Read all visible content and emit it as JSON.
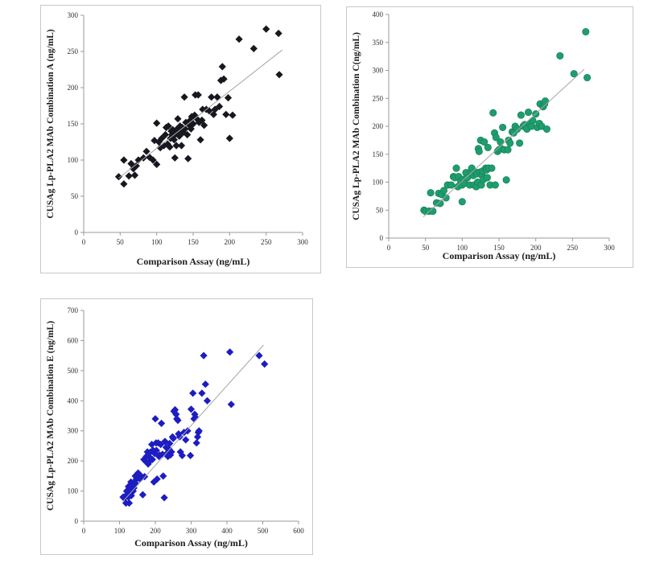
{
  "page": {
    "background": "#ffffff",
    "panel_border_color": "#c7c7cd"
  },
  "chart_data": [
    {
      "id": "combination-a",
      "type": "scatter",
      "marker": "diamond",
      "marker_color": "#17171f",
      "marker_edge_color": "#0c0c14",
      "trendline_color": "#a6a6a6",
      "title": "",
      "xlabel": "Comparison Assay (ng/mL)",
      "ylabel": "CUSAg Lp-PLA2 MAb Combination A (ng/mL)",
      "xlim": [
        0,
        300
      ],
      "ylim": [
        0,
        300
      ],
      "xticks": [
        0,
        50,
        100,
        150,
        200,
        250,
        300
      ],
      "yticks": [
        0,
        50,
        100,
        150,
        200,
        250,
        300
      ],
      "grid": false,
      "legend": null,
      "trendline": {
        "x1": 48,
        "y1": 75,
        "x2": 272,
        "y2": 252
      },
      "points": [
        [
          48,
          77
        ],
        [
          55,
          67
        ],
        [
          55,
          100
        ],
        [
          62,
          78
        ],
        [
          65,
          95
        ],
        [
          68,
          88
        ],
        [
          70,
          79
        ],
        [
          72,
          92
        ],
        [
          75,
          100
        ],
        [
          82,
          103
        ],
        [
          86,
          112
        ],
        [
          90,
          104
        ],
        [
          95,
          100
        ],
        [
          97,
          127
        ],
        [
          100,
          94
        ],
        [
          100,
          151
        ],
        [
          103,
          125
        ],
        [
          105,
          117
        ],
        [
          107,
          130
        ],
        [
          110,
          120
        ],
        [
          112,
          135
        ],
        [
          113,
          145
        ],
        [
          115,
          122
        ],
        [
          116,
          147
        ],
        [
          118,
          118
        ],
        [
          119,
          130
        ],
        [
          120,
          140
        ],
        [
          121,
          135
        ],
        [
          122,
          142
        ],
        [
          124,
          128
        ],
        [
          125,
          103
        ],
        [
          126,
          136
        ],
        [
          127,
          120
        ],
        [
          128,
          143
        ],
        [
          129,
          157
        ],
        [
          130,
          140
        ],
        [
          131,
          133
        ],
        [
          132,
          147
        ],
        [
          134,
          120
        ],
        [
          135,
          145
        ],
        [
          136,
          138
        ],
        [
          138,
          187
        ],
        [
          139,
          143
        ],
        [
          140,
          152
        ],
        [
          142,
          135
        ],
        [
          143,
          102
        ],
        [
          145,
          148
        ],
        [
          146,
          155
        ],
        [
          147,
          143
        ],
        [
          148,
          160
        ],
        [
          150,
          150
        ],
        [
          152,
          162
        ],
        [
          153,
          190
        ],
        [
          155,
          157
        ],
        [
          157,
          190
        ],
        [
          158,
          152
        ],
        [
          160,
          128
        ],
        [
          162,
          155
        ],
        [
          163,
          170
        ],
        [
          165,
          148
        ],
        [
          168,
          170
        ],
        [
          172,
          168
        ],
        [
          175,
          187
        ],
        [
          178,
          163
        ],
        [
          180,
          170
        ],
        [
          183,
          187
        ],
        [
          186,
          174
        ],
        [
          188,
          210
        ],
        [
          190,
          229
        ],
        [
          192,
          212
        ],
        [
          195,
          163
        ],
        [
          198,
          186
        ],
        [
          200,
          130
        ],
        [
          204,
          162
        ],
        [
          213,
          267
        ],
        [
          233,
          254
        ],
        [
          250,
          281
        ],
        [
          267,
          275
        ],
        [
          268,
          218
        ]
      ]
    },
    {
      "id": "combination-c",
      "type": "scatter",
      "marker": "circle",
      "marker_color": "#1f9d6d",
      "marker_edge_color": "#12815a",
      "trendline_color": "#a6a6a6",
      "title": "",
      "xlabel": "Comparison Assay (ng/mL)",
      "ylabel": "CUSAg Lp-PLA2 MAb Combination C(ng/mL)",
      "xlim": [
        0,
        300
      ],
      "ylim": [
        0,
        400
      ],
      "xticks": [
        0,
        50,
        100,
        150,
        200,
        250,
        300
      ],
      "yticks": [
        0,
        50,
        100,
        150,
        200,
        250,
        300,
        350,
        400
      ],
      "grid": false,
      "legend": null,
      "trendline": {
        "x1": 47,
        "y1": 38,
        "x2": 266,
        "y2": 302
      },
      "points": [
        [
          48,
          50
        ],
        [
          50,
          48
        ],
        [
          55,
          48
        ],
        [
          57,
          81
        ],
        [
          60,
          48
        ],
        [
          65,
          63
        ],
        [
          68,
          80
        ],
        [
          70,
          62
        ],
        [
          72,
          78
        ],
        [
          75,
          85
        ],
        [
          78,
          72
        ],
        [
          80,
          95
        ],
        [
          85,
          95
        ],
        [
          88,
          110
        ],
        [
          90,
          108
        ],
        [
          92,
          125
        ],
        [
          94,
          92
        ],
        [
          95,
          110
        ],
        [
          98,
          102
        ],
        [
          100,
          65
        ],
        [
          100,
          95
        ],
        [
          102,
          105
        ],
        [
          103,
          98
        ],
        [
          105,
          117
        ],
        [
          107,
          108
        ],
        [
          110,
          95
        ],
        [
          112,
          120
        ],
        [
          113,
          125
        ],
        [
          115,
          112
        ],
        [
          116,
          95
        ],
        [
          118,
          118
        ],
        [
          119,
          92
        ],
        [
          120,
          115
        ],
        [
          121,
          100
        ],
        [
          122,
          160
        ],
        [
          123,
          155
        ],
        [
          124,
          118
        ],
        [
          125,
          175
        ],
        [
          126,
          95
        ],
        [
          127,
          112
        ],
        [
          128,
          120
        ],
        [
          129,
          105
        ],
        [
          130,
          172
        ],
        [
          132,
          125
        ],
        [
          133,
          122
        ],
        [
          134,
          108
        ],
        [
          135,
          162
        ],
        [
          136,
          125
        ],
        [
          138,
          95
        ],
        [
          140,
          125
        ],
        [
          142,
          224
        ],
        [
          144,
          188
        ],
        [
          145,
          95
        ],
        [
          146,
          180
        ],
        [
          148,
          155
        ],
        [
          150,
          158
        ],
        [
          152,
          172
        ],
        [
          153,
          160
        ],
        [
          155,
          198
        ],
        [
          157,
          158
        ],
        [
          160,
          104
        ],
        [
          162,
          158
        ],
        [
          163,
          175
        ],
        [
          165,
          170
        ],
        [
          168,
          190
        ],
        [
          170,
          188
        ],
        [
          172,
          200
        ],
        [
          175,
          195
        ],
        [
          178,
          170
        ],
        [
          180,
          220
        ],
        [
          183,
          200
        ],
        [
          185,
          203
        ],
        [
          188,
          195
        ],
        [
          190,
          225
        ],
        [
          192,
          205
        ],
        [
          194,
          200
        ],
        [
          196,
          210
        ],
        [
          200,
          222
        ],
        [
          202,
          198
        ],
        [
          205,
          205
        ],
        [
          206,
          240
        ],
        [
          208,
          200
        ],
        [
          210,
          235
        ],
        [
          212,
          240
        ],
        [
          213,
          245
        ],
        [
          215,
          195
        ],
        [
          233,
          326
        ],
        [
          252,
          294
        ],
        [
          268,
          369
        ],
        [
          270,
          287
        ]
      ]
    },
    {
      "id": "combination-e",
      "type": "scatter",
      "marker": "diamond",
      "marker_color": "#1d1dc2",
      "marker_edge_color": "#12129a",
      "trendline_color": "#a6a6a6",
      "title": "",
      "xlabel": "Comparison Assay (ng/mL)",
      "ylabel": "CUSAg Lp-PLA2 MAb Combination E (ng/mL)",
      "xlim": [
        0,
        600
      ],
      "ylim": [
        0,
        700
      ],
      "xticks": [
        0,
        100,
        200,
        300,
        400,
        500,
        600
      ],
      "yticks": [
        0,
        100,
        200,
        300,
        400,
        500,
        600,
        700
      ],
      "grid": false,
      "legend": null,
      "trendline": {
        "x1": 109,
        "y1": 65,
        "x2": 502,
        "y2": 585
      },
      "points": [
        [
          110,
          80
        ],
        [
          115,
          78
        ],
        [
          118,
          60
        ],
        [
          120,
          85
        ],
        [
          120,
          100
        ],
        [
          122,
          90
        ],
        [
          125,
          80
        ],
        [
          125,
          115
        ],
        [
          127,
          60
        ],
        [
          128,
          95
        ],
        [
          130,
          112
        ],
        [
          132,
          130
        ],
        [
          133,
          85
        ],
        [
          135,
          105
        ],
        [
          136,
          125
        ],
        [
          138,
          100
        ],
        [
          140,
          110
        ],
        [
          142,
          130
        ],
        [
          144,
          150
        ],
        [
          145,
          125
        ],
        [
          147,
          140
        ],
        [
          150,
          145
        ],
        [
          152,
          160
        ],
        [
          155,
          155
        ],
        [
          157,
          140
        ],
        [
          160,
          150
        ],
        [
          162,
          145
        ],
        [
          165,
          88
        ],
        [
          168,
          205
        ],
        [
          170,
          148
        ],
        [
          172,
          200
        ],
        [
          175,
          215
        ],
        [
          178,
          230
        ],
        [
          180,
          190
        ],
        [
          182,
          215
        ],
        [
          185,
          200
        ],
        [
          187,
          230
        ],
        [
          190,
          255
        ],
        [
          192,
          205
        ],
        [
          194,
          235
        ],
        [
          196,
          130
        ],
        [
          198,
          225
        ],
        [
          200,
          340
        ],
        [
          202,
          260
        ],
        [
          203,
          235
        ],
        [
          205,
          140
        ],
        [
          208,
          260
        ],
        [
          210,
          215
        ],
        [
          212,
          220
        ],
        [
          215,
          255
        ],
        [
          217,
          325
        ],
        [
          220,
          222
        ],
        [
          222,
          150
        ],
        [
          225,
          78
        ],
        [
          227,
          265
        ],
        [
          230,
          245
        ],
        [
          232,
          225
        ],
        [
          235,
          215
        ],
        [
          238,
          240
        ],
        [
          240,
          258
        ],
        [
          242,
          220
        ],
        [
          245,
          230
        ],
        [
          248,
          280
        ],
        [
          250,
          275
        ],
        [
          252,
          365
        ],
        [
          255,
          370
        ],
        [
          258,
          355
        ],
        [
          260,
          340
        ],
        [
          263,
          335
        ],
        [
          265,
          290
        ],
        [
          268,
          280
        ],
        [
          270,
          230
        ],
        [
          275,
          218
        ],
        [
          280,
          295
        ],
        [
          285,
          270
        ],
        [
          290,
          300
        ],
        [
          298,
          218
        ],
        [
          300,
          372
        ],
        [
          305,
          425
        ],
        [
          308,
          340
        ],
        [
          310,
          355
        ],
        [
          312,
          345
        ],
        [
          315,
          260
        ],
        [
          318,
          280
        ],
        [
          320,
          295
        ],
        [
          322,
          300
        ],
        [
          330,
          425
        ],
        [
          335,
          550
        ],
        [
          340,
          455
        ],
        [
          345,
          400
        ],
        [
          408,
          562
        ],
        [
          412,
          388
        ],
        [
          490,
          550
        ],
        [
          505,
          522
        ]
      ]
    }
  ]
}
